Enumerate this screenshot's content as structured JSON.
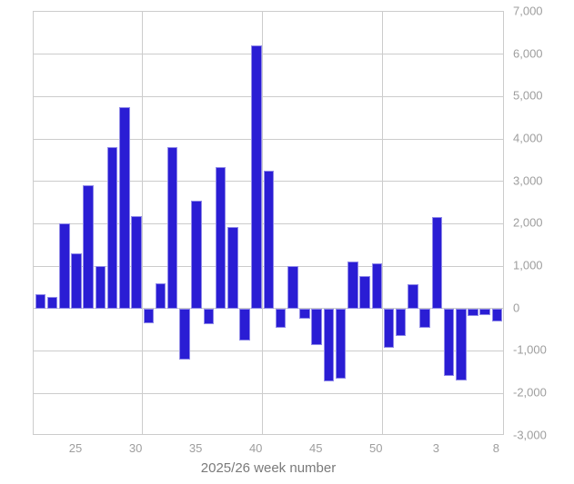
{
  "chart_data": {
    "type": "bar",
    "title": "",
    "xlabel": "2025/26 week number",
    "ylabel": "",
    "ylim": [
      -3000,
      7000
    ],
    "ytick_step": 1000,
    "legend": "none",
    "grid": true,
    "y_axis_side": "right",
    "categories": [
      22,
      23,
      24,
      25,
      26,
      27,
      28,
      29,
      30,
      31,
      32,
      33,
      34,
      35,
      36,
      37,
      38,
      39,
      40,
      41,
      42,
      43,
      44,
      45,
      46,
      47,
      48,
      49,
      50,
      51,
      52,
      1,
      2,
      3,
      4,
      5,
      6,
      7,
      8
    ],
    "values": [
      330,
      280,
      2000,
      1290,
      2900,
      990,
      3800,
      4750,
      2180,
      -350,
      590,
      3800,
      -1200,
      2540,
      -370,
      3330,
      1920,
      -750,
      6200,
      3240,
      -460,
      1010,
      -250,
      -870,
      -1730,
      -1650,
      1100,
      760,
      1060,
      -920,
      -640,
      570,
      -450,
      2160,
      -1590,
      -1700,
      -180,
      -160,
      -300
    ],
    "xticks_shown": [
      25,
      30,
      35,
      40,
      45,
      50,
      3,
      8
    ],
    "vgrid_category_boundaries": [
      8.5,
      18.5,
      28.5
    ],
    "colors": {
      "bar": "#2a1dd4",
      "bar_edge": "#8f89e8",
      "grid": "#cccccc",
      "tick_label": "#9e9e9e",
      "axis_title": "#7a7a7a",
      "background": "#ffffff"
    }
  }
}
